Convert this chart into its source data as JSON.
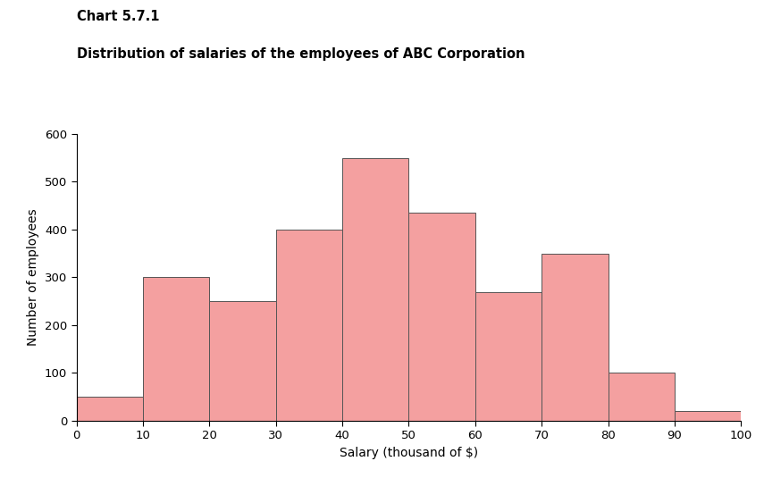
{
  "title_line1": "Chart 5.7.1",
  "title_line2": "Distribution of salaries of the employees of ABC Corporation",
  "xlabel": "Salary (thousand of $)",
  "ylabel": "Number of employees",
  "bar_edges": [
    0,
    10,
    20,
    30,
    40,
    50,
    60,
    70,
    80,
    90,
    100
  ],
  "bar_heights": [
    50,
    300,
    250,
    400,
    550,
    435,
    268,
    350,
    100,
    20
  ],
  "bar_color": "#F4A0A0",
  "bar_edgecolor": "#555555",
  "xlim": [
    0,
    100
  ],
  "ylim": [
    0,
    600
  ],
  "xticks": [
    0,
    10,
    20,
    30,
    40,
    50,
    60,
    70,
    80,
    90,
    100
  ],
  "yticks": [
    0,
    100,
    200,
    300,
    400,
    500,
    600
  ],
  "background_color": "#ffffff",
  "title_fontsize": 10.5,
  "label_fontsize": 10,
  "tick_fontsize": 9.5
}
